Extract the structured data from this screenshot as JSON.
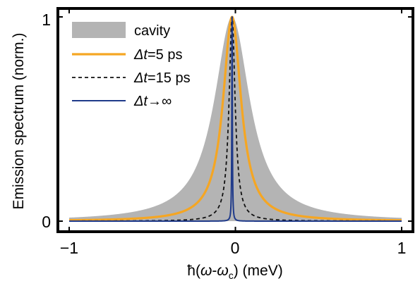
{
  "chart_data": {
    "type": "line",
    "xlabel_parts": [
      "ħ(",
      "ω",
      "-",
      "ω",
      "c",
      ") (meV)"
    ],
    "ylabel": "Emission spectrum (norm.)",
    "xlim": [
      -1,
      1
    ],
    "ylim": [
      0,
      1
    ],
    "xticks": [
      "−1",
      "0",
      "1"
    ],
    "yticks": [
      "0",
      "1"
    ],
    "legend_position": "top-left",
    "grid": false,
    "center": -0.02,
    "series": [
      {
        "name_parts": [
          "",
          "",
          "cavity"
        ],
        "style": "filled",
        "color": "#b4b4b4",
        "shape": "lorentzian",
        "fwhm_meV": 0.26,
        "points": [
          [
            -1,
            0.017
          ],
          [
            -0.5,
            0.063
          ],
          [
            -0.2,
            0.29
          ],
          [
            -0.1,
            0.61
          ],
          [
            -0.02,
            1.0
          ],
          [
            0.1,
            0.61
          ],
          [
            0.2,
            0.29
          ],
          [
            0.5,
            0.063
          ],
          [
            1,
            0.017
          ]
        ]
      },
      {
        "name_parts": [
          "Δ",
          "t",
          "=5 ps"
        ],
        "style": "solid",
        "color": "#f5a623",
        "shape": "lorentzian",
        "fwhm_meV": 0.132,
        "points": [
          [
            -1,
            0.004
          ],
          [
            -0.5,
            0.017
          ],
          [
            -0.2,
            0.09
          ],
          [
            -0.1,
            0.28
          ],
          [
            -0.02,
            1.0
          ],
          [
            0.1,
            0.28
          ],
          [
            0.2,
            0.09
          ],
          [
            0.5,
            0.017
          ],
          [
            1,
            0.004
          ]
        ]
      },
      {
        "name_parts": [
          "Δ",
          "t",
          "=15 ps"
        ],
        "style": "dashed",
        "color": "#111111",
        "shape": "lorentzian",
        "fwhm_meV": 0.044,
        "points": [
          [
            -1,
            0.0005
          ],
          [
            -0.5,
            0.002
          ],
          [
            -0.2,
            0.012
          ],
          [
            -0.1,
            0.045
          ],
          [
            -0.02,
            1.0
          ],
          [
            0.1,
            0.045
          ],
          [
            0.2,
            0.012
          ],
          [
            0.5,
            0.002
          ],
          [
            1,
            0.0005
          ]
        ]
      },
      {
        "name_parts": [
          "Δ",
          "t",
          "→∞"
        ],
        "style": "solid",
        "color": "#1f3a8a",
        "shape": "lorentzian",
        "fwhm_meV": 0.004,
        "points": [
          [
            -1,
            0.0
          ],
          [
            -0.1,
            0.0004
          ],
          [
            -0.02,
            1.0
          ],
          [
            0.1,
            0.0004
          ],
          [
            1,
            0.0
          ]
        ]
      }
    ]
  }
}
